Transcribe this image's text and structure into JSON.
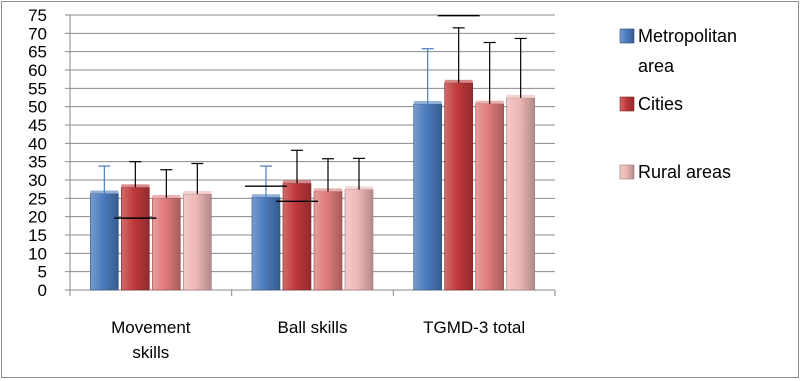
{
  "chart_data": {
    "type": "bar",
    "categories": [
      [
        "Movement",
        "skills"
      ],
      [
        "Ball skills"
      ],
      [
        "TGMD-3 total"
      ]
    ],
    "ylim": [
      0,
      75
    ],
    "ytick_step": 5,
    "grid": true,
    "legend_position": "right",
    "series": [
      {
        "name": "Metropolitan area",
        "legend_label": [
          "Metropolitan",
          "area"
        ],
        "color": "#4a7bbd",
        "values": [
          26.3,
          25.3,
          50.7
        ],
        "err_up": [
          33.8,
          33.8,
          65.8
        ],
        "err_low": [
          null,
          28.3,
          null
        ]
      },
      {
        "name": "Cities",
        "legend_label": [
          "Cities"
        ],
        "color": "#c0393b",
        "values": [
          28.0,
          29.1,
          56.5
        ],
        "err_up": [
          35.0,
          38.1,
          71.5
        ],
        "err_low": [
          19.6,
          24.2,
          74.8
        ]
      },
      {
        "name": "",
        "legend_label": [],
        "color": "#e07b7c",
        "values": [
          25.1,
          26.9,
          50.8
        ],
        "err_up": [
          32.8,
          35.8,
          67.5
        ],
        "err_low": [
          null,
          null,
          null
        ]
      },
      {
        "name": "Rural areas",
        "legend_label": [
          "Rural areas"
        ],
        "color": "#edb8b6",
        "values": [
          26.2,
          27.4,
          52.4
        ],
        "err_up": [
          34.5,
          35.9,
          68.6
        ],
        "err_low": [
          null,
          null,
          null
        ]
      }
    ]
  }
}
